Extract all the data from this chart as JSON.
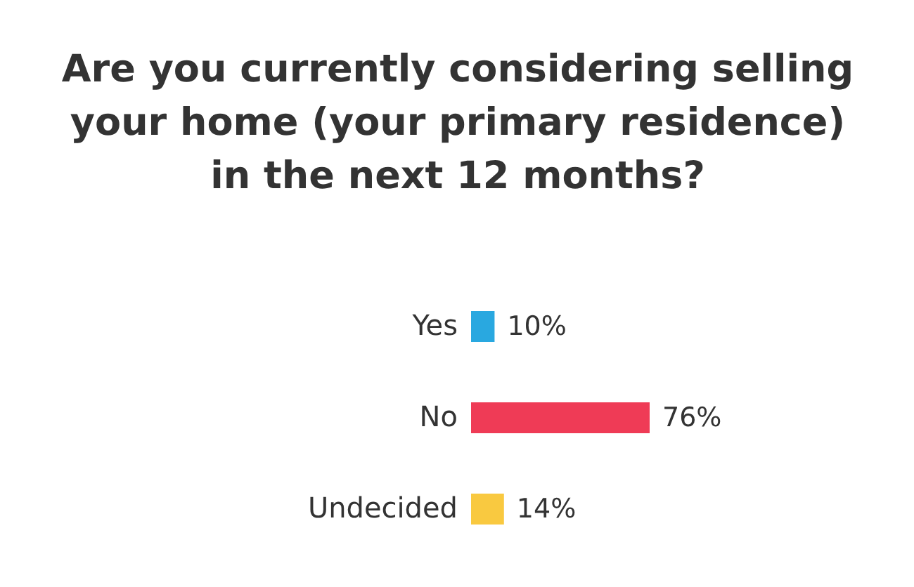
{
  "chart_data": {
    "type": "bar",
    "orientation": "horizontal",
    "title": "Are you currently considering selling\nyour home (your primary residence)\nin the next 12 months?",
    "categories": [
      "Yes",
      "No",
      "Undecided"
    ],
    "values": [
      10,
      76,
      14
    ],
    "colors": [
      "#29a8e0",
      "#ef3b56",
      "#f9c940"
    ],
    "value_labels": [
      "10%",
      "76%",
      "14%"
    ],
    "grid": false
  }
}
